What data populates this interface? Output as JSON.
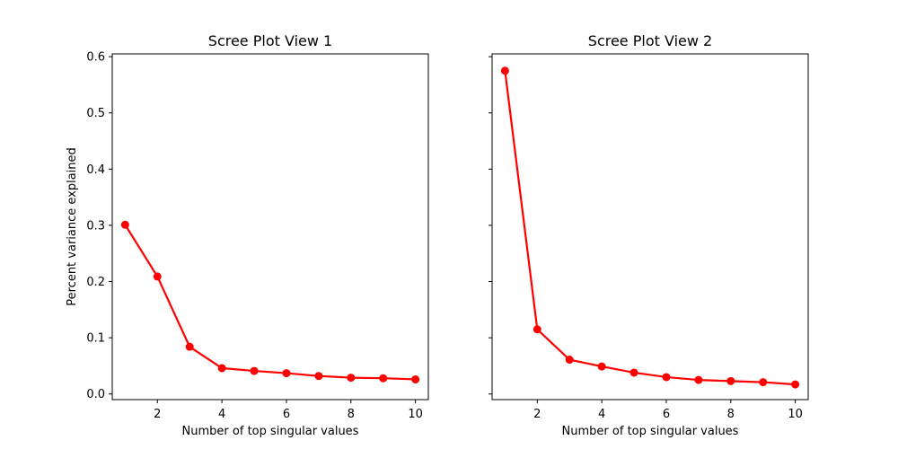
{
  "chart_data": [
    {
      "type": "line",
      "title": "Scree Plot View 1",
      "xlabel": "Number of top singular values",
      "ylabel": "Percent variance explained",
      "xlim": [
        0.6,
        10.4
      ],
      "ylim": [
        -0.01,
        0.605
      ],
      "xticks": [
        2,
        4,
        6,
        8,
        10
      ],
      "xtick_labels": [
        "2",
        "4",
        "6",
        "8",
        "10"
      ],
      "yticks": [
        0.0,
        0.1,
        0.2,
        0.3,
        0.4,
        0.5,
        0.6
      ],
      "ytick_labels": [
        "0.0",
        "0.1",
        "0.2",
        "0.3",
        "0.4",
        "0.5",
        "0.6"
      ],
      "grid": false,
      "series": [
        {
          "color": "#ff0000",
          "marker": "circle",
          "x": [
            1,
            2,
            3,
            4,
            5,
            6,
            7,
            8,
            9,
            10
          ],
          "y": [
            0.301,
            0.209,
            0.084,
            0.046,
            0.041,
            0.037,
            0.032,
            0.029,
            0.028,
            0.026
          ]
        }
      ]
    },
    {
      "type": "line",
      "title": "Scree Plot View 2",
      "xlabel": "Number of top singular values",
      "ylabel": "",
      "xlim": [
        0.6,
        10.4
      ],
      "ylim": [
        -0.01,
        0.605
      ],
      "xticks": [
        2,
        4,
        6,
        8,
        10
      ],
      "xtick_labels": [
        "2",
        "4",
        "6",
        "8",
        "10"
      ],
      "yticks": [
        0.0,
        0.1,
        0.2,
        0.3,
        0.4,
        0.5,
        0.6
      ],
      "ytick_labels": [],
      "grid": false,
      "sharey": true,
      "series": [
        {
          "color": "#ff0000",
          "marker": "circle",
          "x": [
            1,
            2,
            3,
            4,
            5,
            6,
            7,
            8,
            9,
            10
          ],
          "y": [
            0.575,
            0.115,
            0.061,
            0.049,
            0.038,
            0.03,
            0.025,
            0.023,
            0.021,
            0.017
          ]
        }
      ]
    }
  ]
}
